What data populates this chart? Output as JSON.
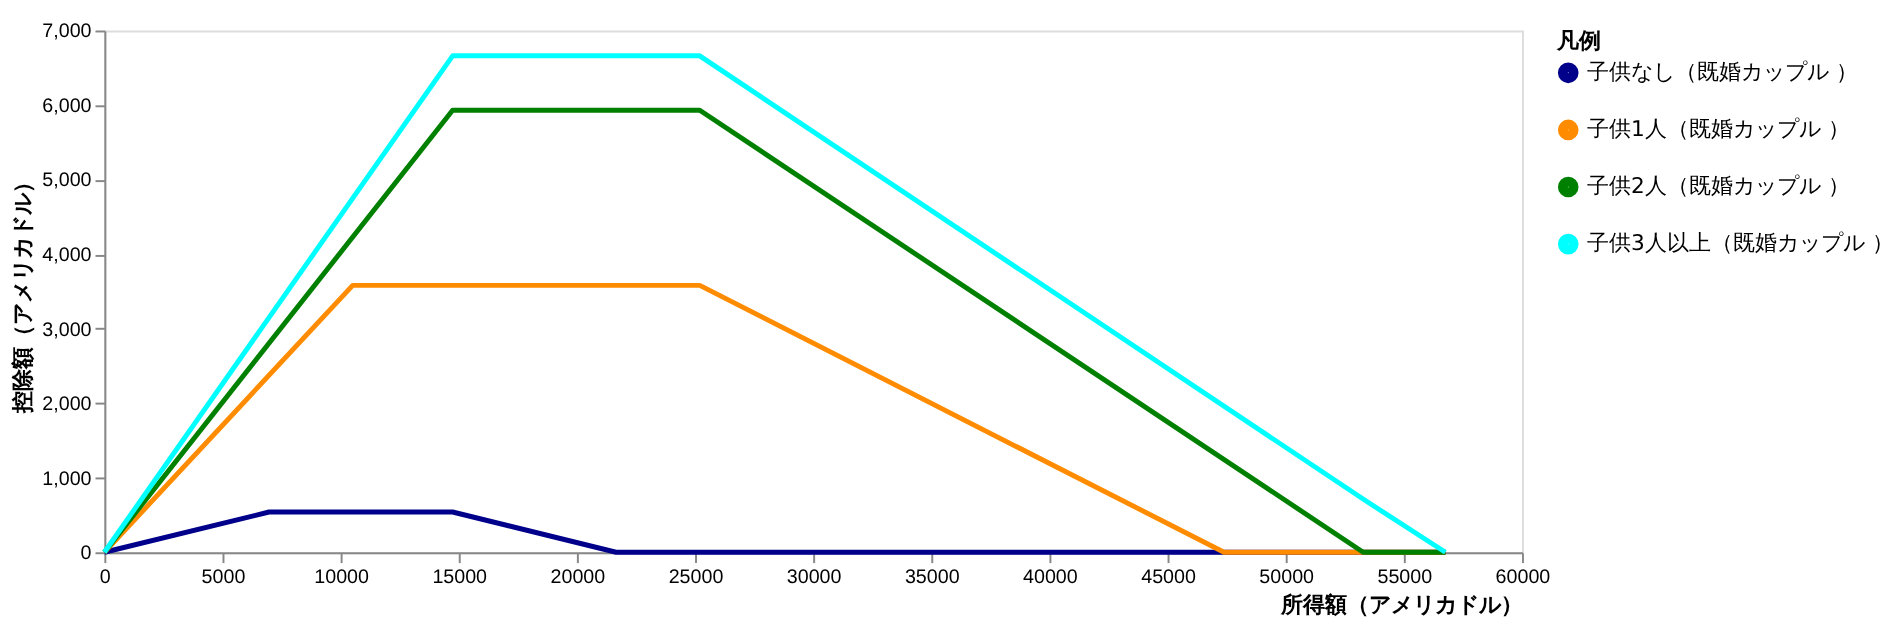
{
  "chart_data": {
    "type": "line",
    "xlabel": "所得額（アメリカドル）",
    "ylabel": "控除額（アメリカドル）",
    "legend_title": "凡例",
    "xlim": [
      0,
      60000
    ],
    "xticks": [
      0,
      5000,
      10000,
      15000,
      20000,
      25000,
      30000,
      35000,
      40000,
      45000,
      50000,
      55000,
      60000
    ],
    "ylim": [
      0,
      7000
    ],
    "yticks": [
      {
        "value": 0,
        "label": "0"
      },
      {
        "value": 1000,
        "label": "1,000"
      },
      {
        "value": 2000,
        "label": "2,000"
      },
      {
        "value": 3000,
        "label": "3,000"
      },
      {
        "value": 4000,
        "label": "4,000"
      },
      {
        "value": 5000,
        "label": "5,000"
      },
      {
        "value": 6000,
        "label": "6,000"
      },
      {
        "value": 7000,
        "label": "7,000"
      }
    ],
    "grid": false,
    "legend": "top right",
    "marker": "none",
    "line_style": "solid",
    "series": [
      {
        "name": "子供なし（既婚カップル ）",
        "color": "#00008b",
        "x": [
          0,
          6970,
          14740,
          21660,
          56760
        ],
        "values": [
          0,
          540,
          540,
          0,
          0
        ]
      },
      {
        "name": "子供1人（既婚カップル ）",
        "color": "#ff8c00",
        "x": [
          0,
          10510,
          25200,
          47390,
          56760
        ],
        "values": [
          0,
          3580,
          3580,
          0,
          0
        ]
      },
      {
        "name": "子供2人（既婚カップル ）",
        "color": "#008000",
        "x": [
          0,
          14740,
          25200,
          53280,
          56760
        ],
        "values": [
          0,
          5930,
          5930,
          0,
          0
        ]
      },
      {
        "name": "子供3人以上（既婚カップル ）",
        "color": "#00ffff",
        "x": [
          0,
          14740,
          25200,
          53340,
          56760
        ],
        "values": [
          0,
          6660,
          6660,
          700,
          0
        ]
      }
    ]
  }
}
